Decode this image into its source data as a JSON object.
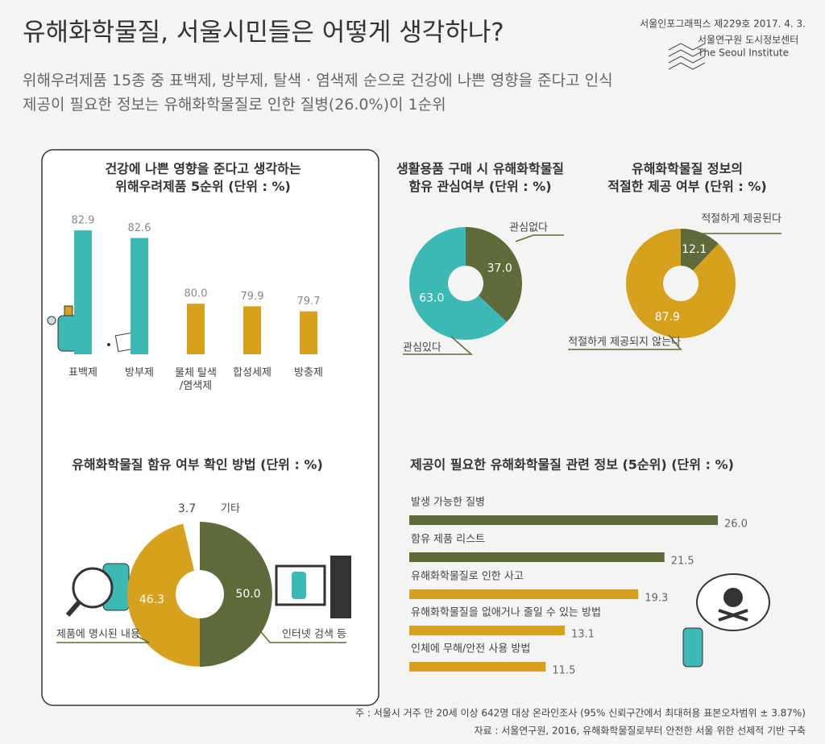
{
  "header": {
    "title": "유해화학물질, 서울시민들은 어떻게 생각하나?",
    "subtitle": "위해우려제품 15종 중 표백제, 방부제, 탈색 · 염색제 순으로 건강에 나쁜 영향을 준다고 인식\n제공이 필요한 정보는 유해화학물질로 인한 질병(26.0%)이 1순위",
    "issue": "서울인포그래픽스 제229호 2017. 4. 3.",
    "publisher": "서울연구원 도시정보센터",
    "publisher_en": "The Seoul Institute"
  },
  "chart_data": [
    {
      "type": "bar",
      "title": "건강에 나쁜 영향을 준다고 생각하는\n위해우려제품 5순위 (단위 : %)",
      "categories": [
        "표백제",
        "방부제",
        "물체 탈색\n/염색제",
        "합성세제",
        "방충제"
      ],
      "values": [
        82.9,
        82.6,
        80.0,
        79.9,
        79.7
      ],
      "value_labels": [
        "82.9",
        "82.6",
        "80.0",
        "79.9",
        "79.7"
      ],
      "colors": [
        "#3cb9b4",
        "#3cb9b4",
        "#d6a21e",
        "#d6a21e",
        "#d6a21e"
      ],
      "ylim": [
        78,
        83
      ]
    },
    {
      "type": "donut",
      "title": "생활용품 구매 시 유해화학물질\n함유 관심여부 (단위 : %)",
      "categories": [
        "관심없다",
        "관심있다"
      ],
      "values": [
        37.0,
        63.0
      ],
      "value_labels": [
        "37.0",
        "63.0"
      ],
      "colors": [
        "#5e6a3a",
        "#3cb9b4"
      ]
    },
    {
      "type": "donut",
      "title": "유해화학물질 정보의\n적절한 제공 여부 (단위 : %)",
      "categories": [
        "적절하게 제공된다",
        "적절하게 제공되지 않는다"
      ],
      "values": [
        12.1,
        87.9
      ],
      "value_labels": [
        "12.1",
        "87.9"
      ],
      "colors": [
        "#5e6a3a",
        "#d6a21e"
      ]
    },
    {
      "type": "donut",
      "title": "유해화학물질 함유 여부 확인 방법 (단위 : %)",
      "categories": [
        "인터넷 검색 등",
        "제품에 명시된 내용",
        "기타"
      ],
      "values": [
        50.0,
        46.3,
        3.7
      ],
      "value_labels": [
        "50.0",
        "46.3",
        "3.7"
      ],
      "colors": [
        "#5e6a3a",
        "#d6a21e",
        "#ffffff"
      ]
    },
    {
      "type": "hbar",
      "title": "제공이 필요한 유해화학물질 관련 정보 (5순위) (단위 : %)",
      "categories": [
        "발생 가능한 질병",
        "함유 제품 리스트",
        "유해화학물질로 인한 사고",
        "유해화학물질을 없애거나 줄일 수 있는 방법",
        "인체에 무해/안전 사용 방법"
      ],
      "values": [
        26.0,
        21.5,
        19.3,
        13.1,
        11.5
      ],
      "value_labels": [
        "26.0",
        "21.5",
        "19.3",
        "13.1",
        "11.5"
      ],
      "colors": [
        "#5e6a3a",
        "#5e6a3a",
        "#d6a21e",
        "#d6a21e",
        "#d6a21e"
      ],
      "xlim": [
        0,
        26
      ]
    }
  ],
  "footer": {
    "note": "주 : 서울시 거주 만 20세 이상 642명 대상 온라인조사 (95% 신뢰구간에서 최대허용 표본오차범위 ± 3.87%)",
    "source": "자료 : 서울연구원, 2016, 유해화학물질로부터 안전한 서울 위한 선제적 기반 구축"
  }
}
